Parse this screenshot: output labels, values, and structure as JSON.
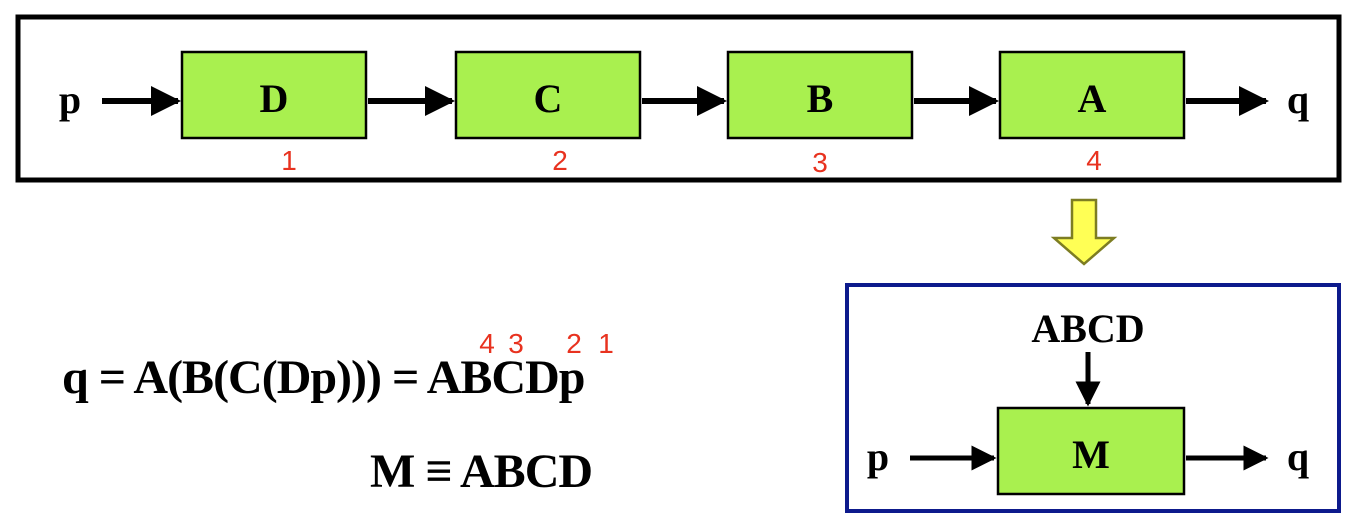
{
  "colors": {
    "block_fill": "#a9f04f",
    "frame_top": "#000000",
    "frame_bottom": "#0d1a8c",
    "step_number": "#e8321f",
    "down_arrow_fill": "#ffff55",
    "down_arrow_stroke": "#7d7d22"
  },
  "chain": {
    "input": "p",
    "output": "q",
    "blocks": [
      {
        "label": "D",
        "step": "1"
      },
      {
        "label": "C",
        "step": "2"
      },
      {
        "label": "B",
        "step": "3"
      },
      {
        "label": "A",
        "step": "4"
      }
    ]
  },
  "equivalent": {
    "input": "p",
    "output": "q",
    "block_label": "M",
    "control_label": "ABCD"
  },
  "equations": {
    "composition_lhs": "q = A(B(C(Dp))) = ",
    "composition_rhs_letters": [
      "A",
      "B",
      "C",
      "D"
    ],
    "composition_tail": "p",
    "order_numbers": [
      "4",
      "3",
      "2",
      "1"
    ],
    "definition": "M ≡ ABCD"
  }
}
